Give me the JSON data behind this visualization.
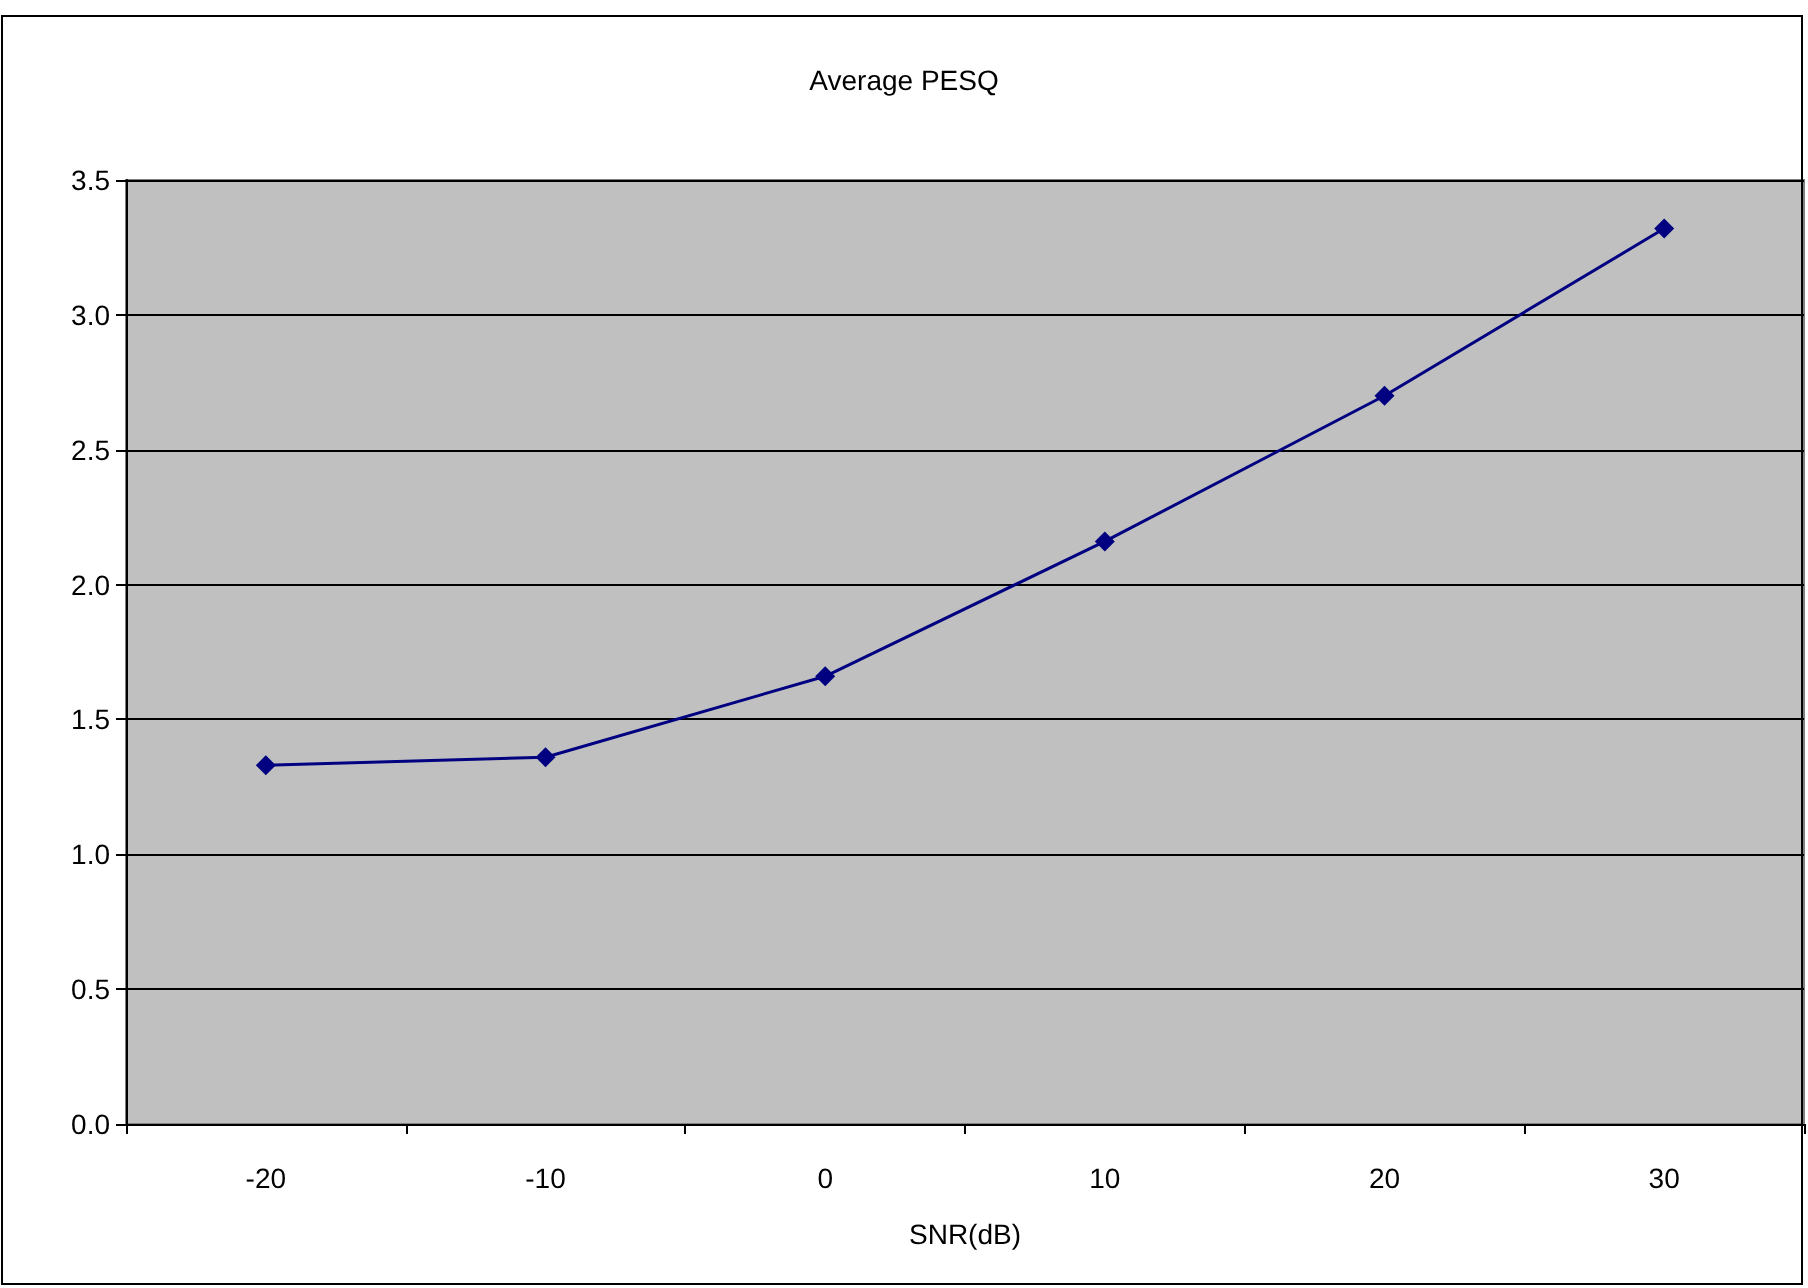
{
  "chart_data": {
    "type": "line",
    "title": "Average PESQ",
    "xlabel": "SNR(dB)",
    "categories": [
      "-20",
      "-10",
      "0",
      "10",
      "20",
      "30"
    ],
    "series": [
      {
        "color": "#000080",
        "values": [
          1.33,
          1.36,
          1.66,
          2.16,
          2.7,
          3.32
        ]
      }
    ],
    "ylim": [
      0,
      3.5
    ],
    "yticks": [
      {
        "value": 0,
        "label": "0.0"
      },
      0.5,
      {
        "value": 1,
        "label": "1.0"
      },
      1.5,
      {
        "value": 2,
        "label": "2.0"
      },
      2.5,
      {
        "value": 3,
        "label": "3.0"
      },
      3.5
    ],
    "grid": "y",
    "marker": "diamond",
    "line_style": "solid"
  }
}
